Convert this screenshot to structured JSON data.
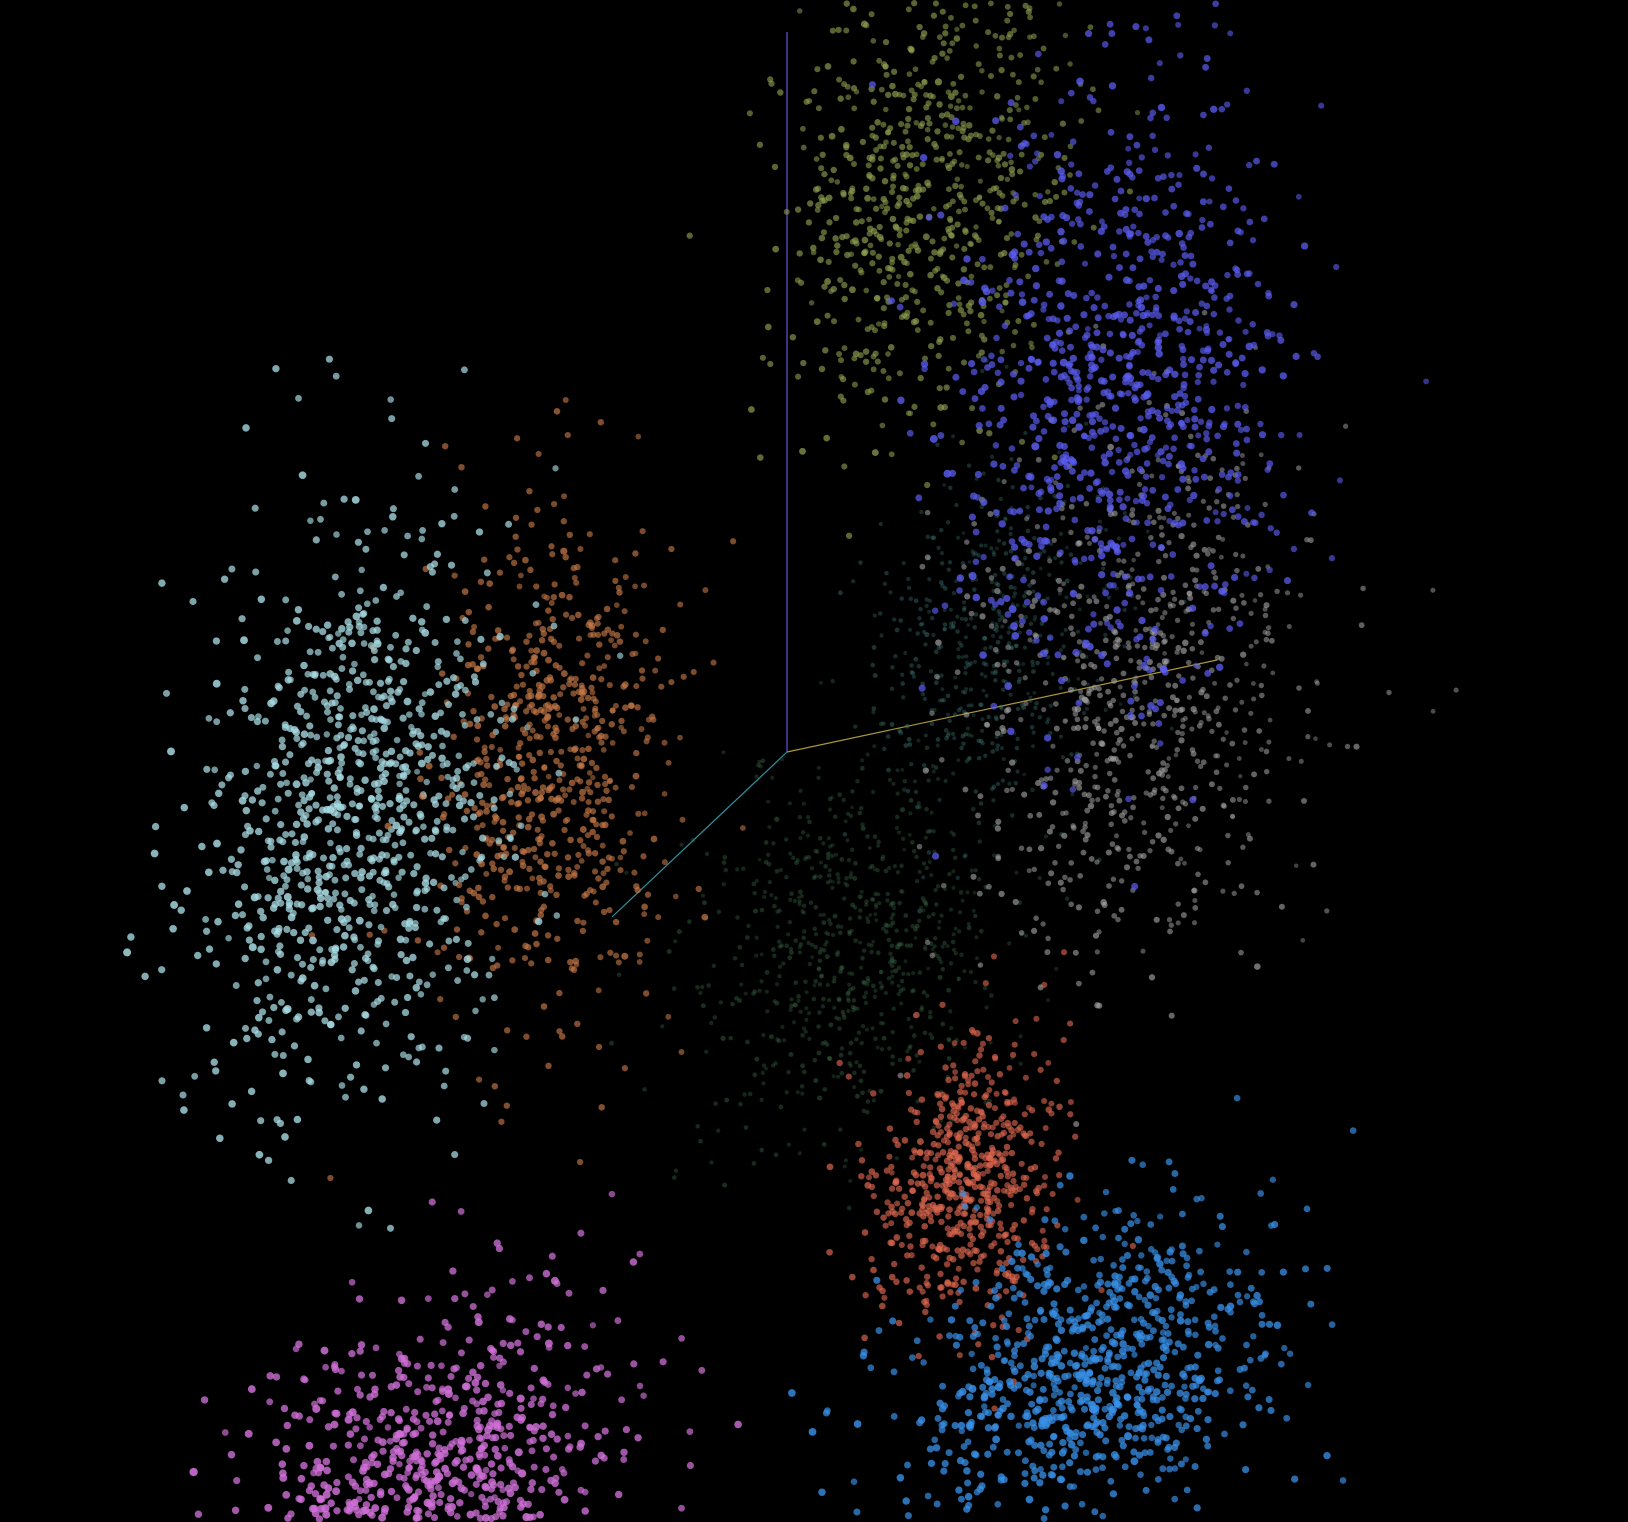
{
  "chart_data": {
    "type": "scatter",
    "projection": "3d",
    "title": "",
    "xlabel": "",
    "ylabel": "",
    "zlabel": "",
    "grid": false,
    "legend": "none",
    "background": "#000000",
    "axes": [
      {
        "name": "x",
        "color": "#c8b040",
        "end": [
          1.0,
          0.0,
          0.0
        ]
      },
      {
        "name": "y",
        "color": "#7a60ff",
        "end": [
          0.0,
          1.0,
          0.0
        ]
      },
      {
        "name": "z",
        "color": "#3aa8b8",
        "end": [
          0.0,
          0.0,
          1.0
        ]
      }
    ],
    "series": [
      {
        "color": "#a8dce4",
        "center": [
          -0.88,
          0.1,
          0.3
        ],
        "spread": [
          0.3,
          0.37,
          0.24
        ],
        "count": 900
      },
      {
        "color": "#c87a48",
        "center": [
          -0.55,
          0.05,
          0.0
        ],
        "spread": [
          0.24,
          0.33,
          0.19
        ],
        "count": 650
      },
      {
        "color": "#8ea050",
        "center": [
          0.28,
          0.73,
          -0.1
        ],
        "spread": [
          0.28,
          0.29,
          0.23
        ],
        "count": 700
      },
      {
        "color": "#5a5cf0",
        "center": [
          0.85,
          0.45,
          0.2
        ],
        "spread": [
          0.33,
          0.37,
          0.28
        ],
        "count": 900
      },
      {
        "color": "#a8a8a8",
        "center": [
          0.7,
          -0.08,
          -0.3
        ],
        "spread": [
          0.35,
          0.33,
          0.28
        ],
        "count": 750
      },
      {
        "color": "#3d7a78",
        "center": [
          0.15,
          -0.05,
          -0.8
        ],
        "spread": [
          0.23,
          0.23,
          0.19
        ],
        "count": 500
      },
      {
        "color": "#3a6a48",
        "center": [
          -0.15,
          -0.42,
          -0.75
        ],
        "spread": [
          0.31,
          0.23,
          0.19
        ],
        "count": 700
      },
      {
        "color": "#e06850",
        "center": [
          0.4,
          -0.65,
          0.0
        ],
        "spread": [
          0.19,
          0.17,
          0.15
        ],
        "count": 600
      },
      {
        "color": "#3890e8",
        "center": [
          0.8,
          -0.91,
          0.25
        ],
        "spread": [
          0.39,
          0.19,
          0.23
        ],
        "count": 850
      },
      {
        "color": "#d070d8",
        "center": [
          -0.68,
          -0.85,
          0.4
        ],
        "spread": [
          0.4,
          0.21,
          0.26
        ],
        "count": 900
      }
    ]
  }
}
